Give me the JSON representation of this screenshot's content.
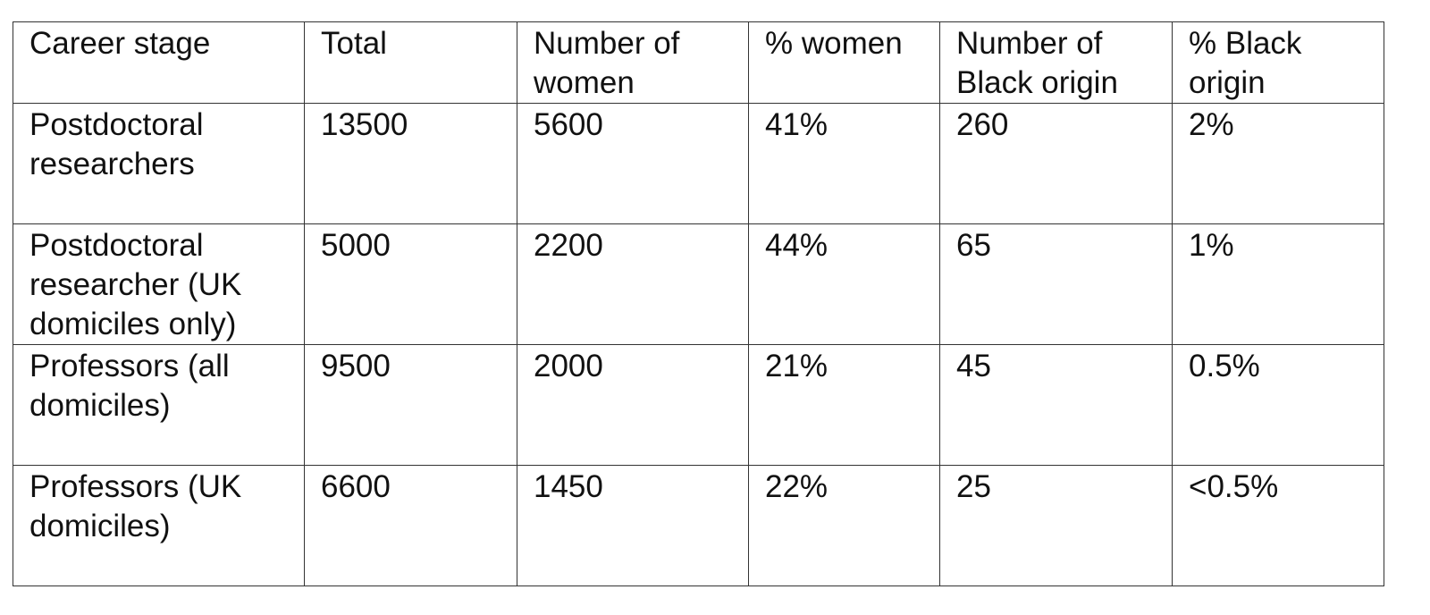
{
  "table": {
    "header": [
      "Career stage",
      "Total",
      "Number of women",
      "% women",
      "Number of Black origin",
      "% Black origin"
    ],
    "rows": [
      [
        "Postdoctoral researchers",
        13500,
        5600,
        "41%",
        260,
        "2%"
      ],
      [
        "Postdoctoral researcher (UK domiciles only)",
        5000,
        2200,
        "44%",
        65,
        "1%"
      ],
      [
        "Professors (all domiciles)",
        9500,
        2000,
        "21%",
        45,
        "0.5%"
      ],
      [
        "Professors (UK domiciles)",
        6600,
        1450,
        "22%",
        25,
        "<0.5%"
      ]
    ]
  }
}
